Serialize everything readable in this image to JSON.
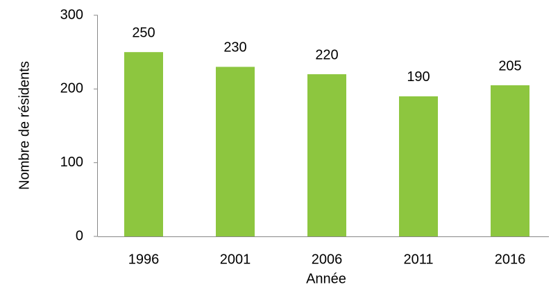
{
  "chart_data": {
    "type": "bar",
    "x_label": "Année",
    "y_label": "Nombre de résidents",
    "categories": [
      "1996",
      "2001",
      "2006",
      "2011",
      "2016"
    ],
    "values": [
      250,
      230,
      220,
      190,
      205
    ],
    "color": "#8dc63f",
    "ylim": [
      0,
      300
    ],
    "yticks": [
      0,
      100,
      200,
      300
    ],
    "grid": false,
    "data_labels": true
  }
}
